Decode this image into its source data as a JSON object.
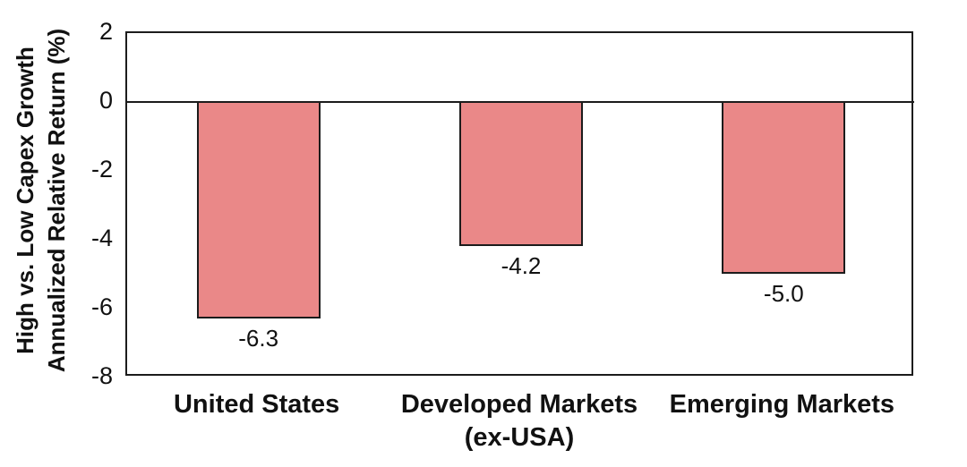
{
  "chart_data": {
    "type": "bar",
    "title": "",
    "categories": [
      {
        "lines": [
          "United States"
        ]
      },
      {
        "lines": [
          "Developed Markets",
          "(ex-USA)"
        ]
      },
      {
        "lines": [
          "Emerging Markets"
        ]
      }
    ],
    "values": [
      -6.3,
      -4.2,
      -5.0
    ],
    "value_labels": [
      "-6.3",
      "-4.2",
      "-5.0"
    ],
    "ylabel_lines": [
      "High vs. Low Capex Growth",
      "Annualized Relative Return (%)"
    ],
    "xlabel": "",
    "yticks": [
      2,
      0,
      -2,
      -4,
      -6,
      -8
    ],
    "ylim": [
      -8,
      2
    ],
    "grid": false,
    "legend": false,
    "series_name": "High vs. Low Capex Growth Annualized Relative Return (%)",
    "colors": {
      "bar_fill": "#EA8888",
      "bar_border": "#1c1c1c",
      "axis": "#1c1c1c",
      "text": "#111111",
      "background": "#ffffff"
    }
  }
}
